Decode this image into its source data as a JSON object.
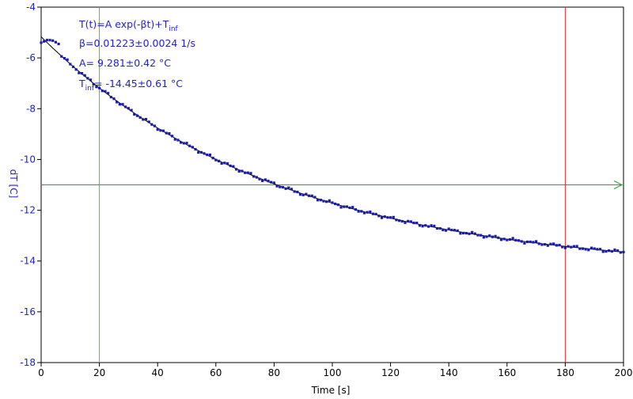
{
  "chart_data": {
    "type": "scatter",
    "xlabel": "Time [s]",
    "ylabel": "dT [C]",
    "xlim": [
      0,
      200
    ],
    "ylim": [
      -18,
      -4
    ],
    "x_ticks": [
      0,
      20,
      40,
      60,
      80,
      100,
      120,
      140,
      160,
      180,
      200
    ],
    "y_ticks": [
      -18,
      -16,
      -14,
      -12,
      -10,
      -8,
      -6,
      -4
    ],
    "grid": false,
    "colors": {
      "points": "#1a1aaa",
      "fit": "#000000",
      "frame": "#000000",
      "labels": "#2222cc",
      "hline": "#22aa22",
      "vline_left": "#33cc33",
      "vline_right": "#dd3333"
    },
    "measured": {
      "x_start": 0,
      "x_end": 200,
      "step": 1,
      "start_points": [
        {
          "x": 0,
          "y": -5.4
        },
        {
          "x": 1,
          "y": -5.35
        },
        {
          "x": 2,
          "y": -5.3
        },
        {
          "x": 3,
          "y": -5.3
        },
        {
          "x": 4,
          "y": -5.32
        },
        {
          "x": 5,
          "y": -5.38
        },
        {
          "x": 6,
          "y": -5.45
        }
      ]
    },
    "fit": {
      "formula": "T(t)=A exp(-βt)+Tinf",
      "A": 9.281,
      "beta": 0.01223,
      "T_inf": -14.45
    },
    "annotations": {
      "formula_main": "T(t)=A exp(-βt)+T",
      "formula_sub": "inf",
      "beta": "β=0.01223±0.0024 1/s",
      "A": "A= 9.281±0.42 °C",
      "tinf_main": "T",
      "tinf_sub": "inf",
      "tinf_rest": "= -14.45±0.61 °C"
    },
    "markers": {
      "horizontal_y": -11,
      "vertical_left_x": 20,
      "vertical_right_x": 180
    }
  }
}
